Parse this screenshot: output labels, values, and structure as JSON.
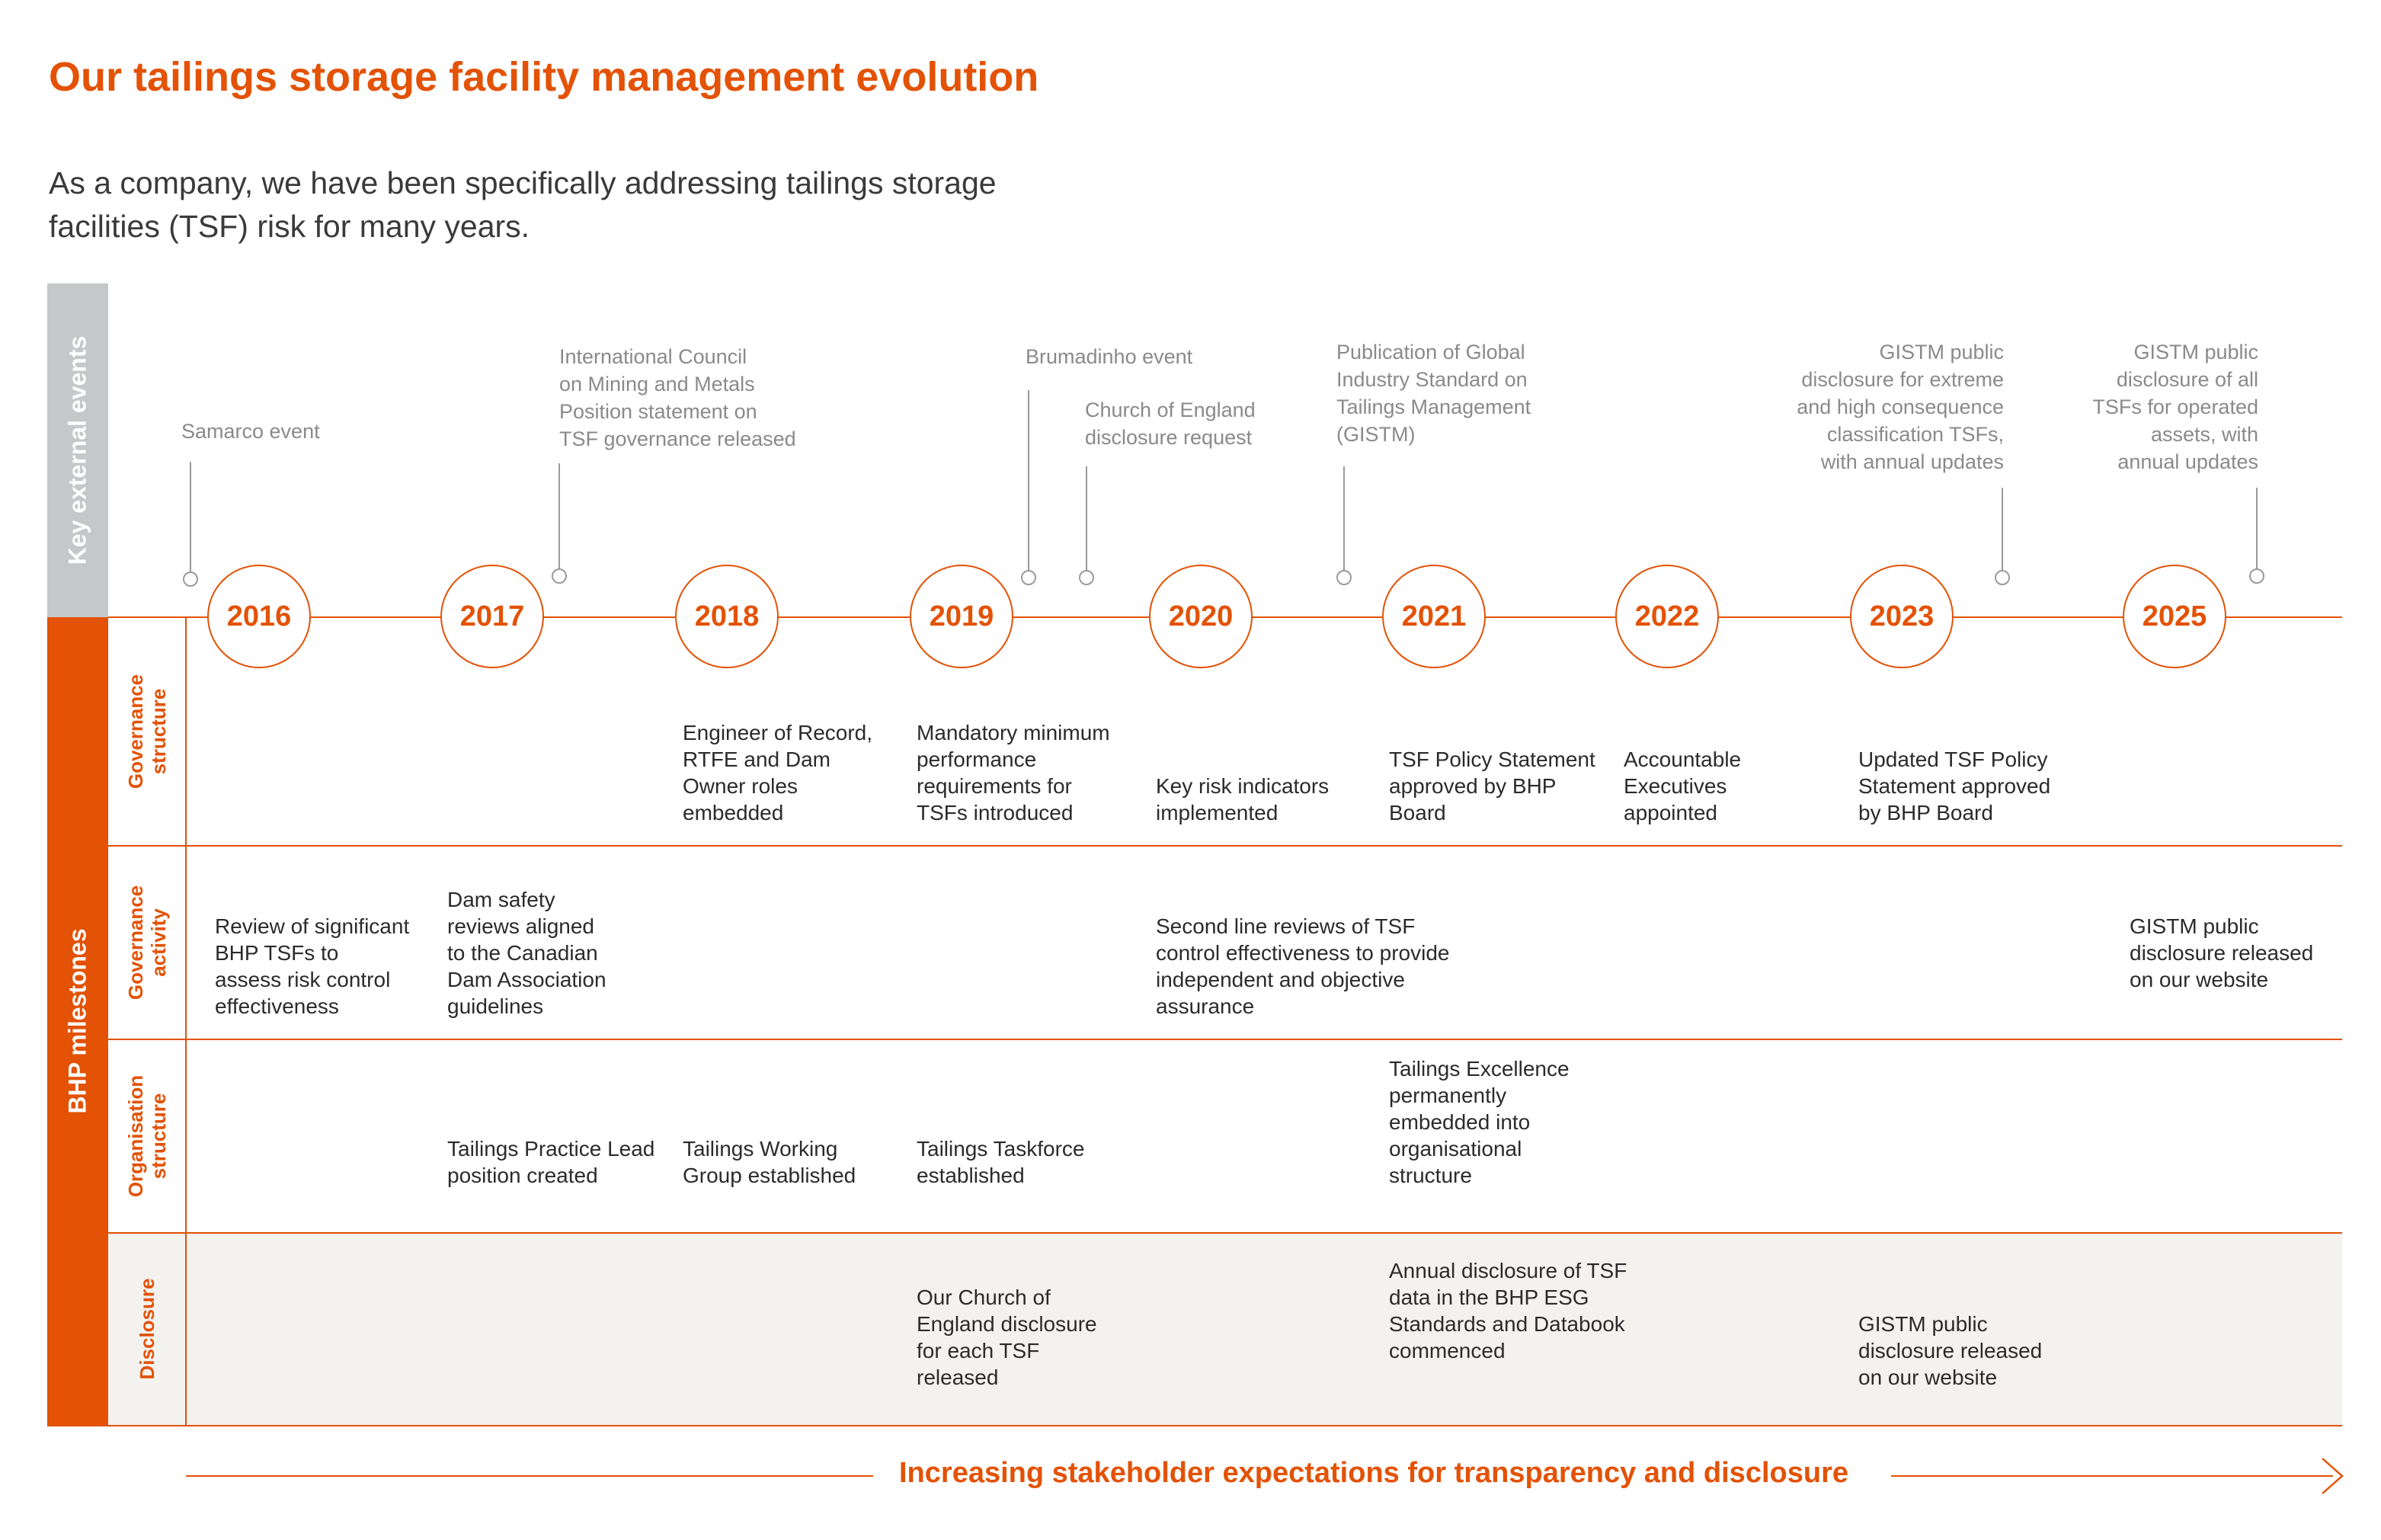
{
  "title": "Our tailings storage facility management evolution",
  "subtitle": "As a company, we have been specifically addressing tailings storage facilities (TSF) risk for many years.",
  "sidebar": {
    "key_external_events": "Key external events",
    "bhp_milestones": "BHP milestones"
  },
  "rows": {
    "governance_structure": "Governance\nstructure",
    "governance_activity": "Governance\nactivity",
    "organisation_structure": "Organisation\nstructure",
    "disclosure": "Disclosure"
  },
  "years": [
    "2016",
    "2017",
    "2018",
    "2019",
    "2020",
    "2021",
    "2022",
    "2023",
    "2025"
  ],
  "events": {
    "samarco": "Samarco event",
    "icmm": "International Council\non Mining and Metals\nPosition statement on\nTSF governance released",
    "brumadinho": "Brumadinho event",
    "church_of_england": "Church of England\ndisclosure request",
    "gistm_publication": "Publication of Global\nIndustry Standard on\nTailings Management\n(GISTM)",
    "gistm_2023": "GISTM public\ndisclosure for extreme\nand high consequence\nclassification TSFs,\nwith annual updates",
    "gistm_2025": "GISTM public\ndisclosure of all\nTSFs for operated\nassets, with\nannual updates"
  },
  "governance_structure": {
    "y2018": "Engineer of Record,\nRTFE and Dam\nOwner roles\nembedded",
    "y2019": "Mandatory minimum\nperformance\nrequirements for\nTSFs introduced",
    "y2020": "Key risk indicators\nimplemented",
    "y2021": "TSF Policy Statement\napproved by BHP\nBoard",
    "y2022": "Accountable\nExecutives\nappointed",
    "y2023": "Updated TSF Policy\nStatement approved\nby BHP Board"
  },
  "governance_activity": {
    "y2016": "Review of significant\nBHP TSFs to\nassess risk control\neffectiveness",
    "y2017": "Dam safety\nreviews aligned\nto the Canadian\nDam Association\nguidelines",
    "y2020": "Second line reviews of TSF\ncontrol effectiveness to provide\nindependent and objective\nassurance",
    "y2025": "GISTM public\ndisclosure released\non our website"
  },
  "organisation_structure": {
    "y2017": "Tailings Practice Lead\nposition created",
    "y2018": "Tailings Working\nGroup established",
    "y2019": "Tailings Taskforce\nestablished",
    "y2021": "Tailings Excellence\npermanently\nembedded into\norganisational\nstructure"
  },
  "disclosure": {
    "y2019": "Our Church of\nEngland disclosure\nfor each TSF\nreleased",
    "y2021": "Annual disclosure of TSF\ndata in the BHP ESG\nStandards and Databook\ncommenced",
    "y2023": "GISTM public\ndisclosure released\non our website"
  },
  "footer": "Increasing stakeholder expectations for transparency and disclosure",
  "colors": {
    "accent": "#e35205",
    "grey_bar": "#c5c7c9",
    "disclosure_bg": "#f3f2ef",
    "event_text": "#8a8a8a"
  }
}
